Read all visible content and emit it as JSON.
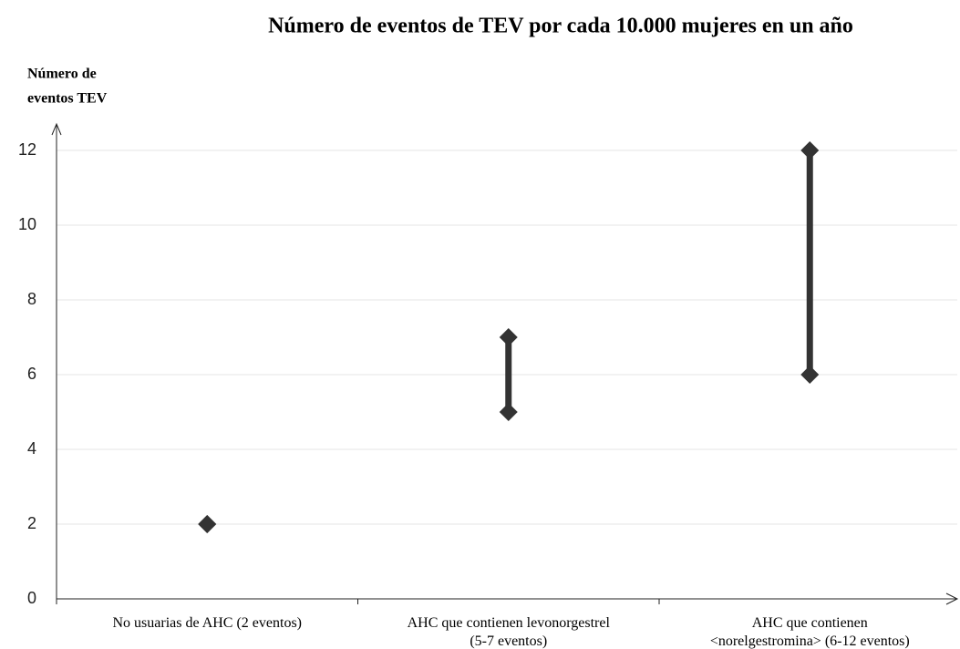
{
  "chart_data": {
    "type": "range",
    "title": "Número de eventos de TEV por cada 10.000 mujeres en un año",
    "y_label": [
      "Número de",
      "eventos TEV"
    ],
    "categories": [
      "No usuarias de AHC (2 eventos)",
      "AHC que contienen levonorgestrel\n(5-7 eventos)",
      "AHC que contienen\n<norelgestromina> (6-12 eventos)"
    ],
    "low": [
      2,
      5,
      6
    ],
    "high": [
      2,
      7,
      12
    ],
    "color": "#333333",
    "ylim": [
      0,
      12
    ],
    "yticks": [
      0,
      2,
      4,
      6,
      8,
      10,
      12
    ],
    "grid": true
  }
}
